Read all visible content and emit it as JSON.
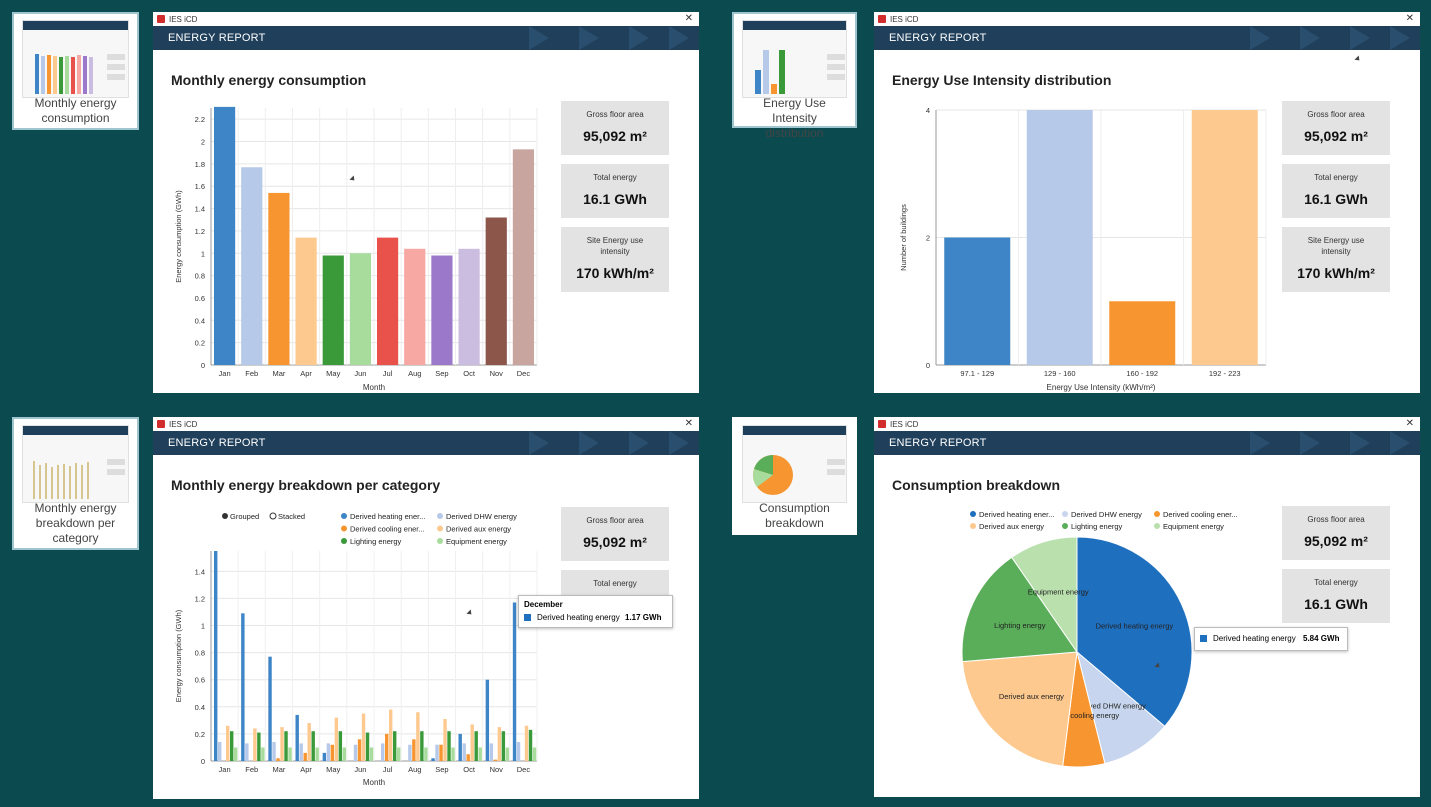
{
  "app_name": "IES iCD",
  "close_glyph": "✕",
  "band_title": "ENERGY REPORT",
  "thumbnails": [
    {
      "caption": "Monthly energy consumption"
    },
    {
      "caption": "Energy Use Intensity distribution"
    },
    {
      "caption": "Monthly energy breakdown per category"
    },
    {
      "caption": "Consumption breakdown"
    }
  ],
  "stats": {
    "gross_floor_area": {
      "label": "Gross floor area",
      "value": "95,092 m²"
    },
    "total_energy": {
      "label": "Total energy",
      "value": "16.1 GWh"
    },
    "site_eui": {
      "label": "Site Energy use intensity",
      "value": "170 kWh/m²"
    }
  },
  "panels": {
    "monthly": {
      "title": "Monthly energy consumption"
    },
    "eui": {
      "title": "Energy Use Intensity distribution"
    },
    "breakdown": {
      "title": "Monthly energy breakdown per category"
    },
    "consumption": {
      "title": "Consumption breakdown"
    }
  },
  "chart_data": [
    {
      "type": "bar",
      "title": "",
      "xlabel": "Month",
      "ylabel": "Energy consumption (GWh)",
      "categories": [
        "Jan",
        "Feb",
        "Mar",
        "Apr",
        "May",
        "Jun",
        "Jul",
        "Aug",
        "Sep",
        "Oct",
        "Nov",
        "Dec"
      ],
      "values": [
        2.31,
        1.77,
        1.54,
        1.14,
        0.98,
        1.0,
        1.14,
        1.04,
        0.98,
        1.04,
        1.32,
        1.93
      ],
      "colors": [
        "#3d85c6",
        "#b7c9e8",
        "#f79530",
        "#fdc98f",
        "#3a9a3a",
        "#a8dc9c",
        "#e8524a",
        "#f7a8a3",
        "#9b78c9",
        "#cbbde0",
        "#8c564b",
        "#c9a59f"
      ],
      "ylim": [
        0,
        2.3
      ],
      "yticks": [
        "0",
        "0.2",
        "0.4",
        "0.6",
        "0.8",
        "1",
        "1.2",
        "1.4",
        "1.6",
        "1.8",
        "2",
        "2.2"
      ]
    },
    {
      "type": "bar",
      "title": "",
      "xlabel": "Energy Use Intensity (kWh/m²)",
      "ylabel": "Number of buildings",
      "categories": [
        "97.1 - 129",
        "129 - 160",
        "160 - 192",
        "192 - 223"
      ],
      "values": [
        2,
        4,
        1,
        4
      ],
      "colors": [
        "#3d85c6",
        "#b7c9e8",
        "#f79530",
        "#fdc98f"
      ],
      "ylim": [
        0,
        4
      ],
      "yticks": [
        "0",
        "2",
        "4"
      ]
    },
    {
      "type": "bar",
      "title": "",
      "xlabel": "Month",
      "ylabel": "Energy consumption (GWh)",
      "mode_options": [
        "Grouped",
        "Stacked"
      ],
      "selected_mode": "Grouped",
      "categories": [
        "Jan",
        "Feb",
        "Mar",
        "Apr",
        "May",
        "Jun",
        "Jul",
        "Aug",
        "Sep",
        "Oct",
        "Nov",
        "Dec"
      ],
      "ylim": [
        0,
        1.55
      ],
      "yticks": [
        "0",
        "0.2",
        "0.4",
        "0.6",
        "0.8",
        "1",
        "1.2",
        "1.4"
      ],
      "series": [
        {
          "name": "Derived heating ener...",
          "color": "#3d85c6",
          "values": [
            1.55,
            1.09,
            0.77,
            0.34,
            0.06,
            0.0,
            0.0,
            0.0,
            0.02,
            0.2,
            0.6,
            1.17
          ]
        },
        {
          "name": "Derived DHW energy",
          "color": "#b7c9e8",
          "values": [
            0.14,
            0.13,
            0.14,
            0.13,
            0.13,
            0.12,
            0.13,
            0.12,
            0.12,
            0.13,
            0.13,
            0.14
          ]
        },
        {
          "name": "Derived cooling ener...",
          "color": "#f79530",
          "values": [
            0.0,
            0.0,
            0.02,
            0.06,
            0.12,
            0.16,
            0.2,
            0.16,
            0.12,
            0.05,
            0.01,
            0.0
          ]
        },
        {
          "name": "Derived aux energy",
          "color": "#fdc98f",
          "values": [
            0.26,
            0.24,
            0.25,
            0.28,
            0.32,
            0.35,
            0.38,
            0.36,
            0.31,
            0.27,
            0.25,
            0.26
          ]
        },
        {
          "name": "Lighting energy",
          "color": "#3a9a3a",
          "values": [
            0.22,
            0.21,
            0.22,
            0.22,
            0.22,
            0.21,
            0.22,
            0.22,
            0.22,
            0.22,
            0.22,
            0.23
          ]
        },
        {
          "name": "Equipment energy",
          "color": "#a8dc9c",
          "values": [
            0.1,
            0.1,
            0.1,
            0.1,
            0.1,
            0.1,
            0.1,
            0.1,
            0.1,
            0.1,
            0.1,
            0.1
          ]
        }
      ],
      "tooltip": {
        "title": "December",
        "series": "Derived heating energy",
        "value": "1.17 GWh"
      }
    },
    {
      "type": "pie",
      "title": "",
      "slices": [
        {
          "name": "Derived heating ener...",
          "label": "Derived heating energy",
          "color": "#1f6fbf",
          "value": 5.84
        },
        {
          "name": "Derived DHW energy",
          "label": "Derived DHW energy",
          "color": "#c7d6ee",
          "value": 1.6
        },
        {
          "name": "Derived cooling ener...",
          "label": "Derived cooling energy",
          "color": "#f79530",
          "value": 0.95
        },
        {
          "name": "Derived aux energy",
          "label": "Derived aux energy",
          "color": "#fdc98f",
          "value": 3.5
        },
        {
          "name": "Lighting energy",
          "label": "Lighting energy",
          "color": "#5aae5a",
          "value": 2.7
        },
        {
          "name": "Equipment energy",
          "label": "Equipment energy",
          "color": "#b9e0ad",
          "value": 1.55
        }
      ],
      "tooltip": {
        "series": "Derived heating energy",
        "value": "5.84 GWh"
      }
    }
  ]
}
